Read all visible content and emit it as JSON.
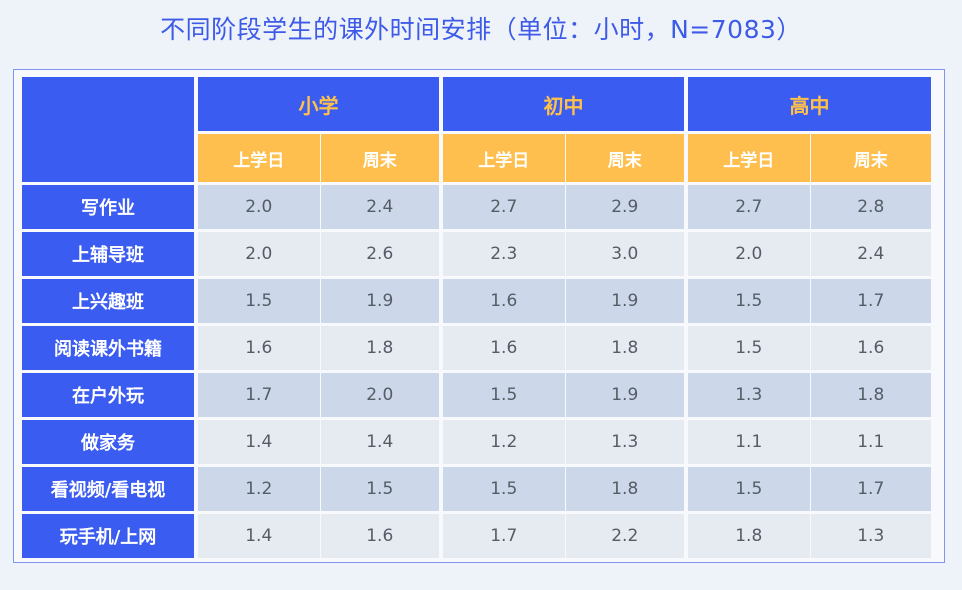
{
  "title": "不同阶段学生的课外时间安排（单位：小时，N=7083）",
  "colors": {
    "header_blue": "#3b5cf0",
    "header_orange": "#ffbf4f",
    "group_text": "#ffc14a",
    "title_blue": "#3d5ae8"
  },
  "chart_data": {
    "type": "table",
    "title": "不同阶段学生的课外时间安排（单位：小时，N=7083）",
    "groups": [
      "小学",
      "初中",
      "高中"
    ],
    "subcolumns": [
      "上学日",
      "周末"
    ],
    "rows": [
      {
        "label": "写作业",
        "values": [
          2.0,
          2.4,
          2.7,
          2.9,
          2.7,
          2.8
        ]
      },
      {
        "label": "上辅导班",
        "values": [
          2.0,
          2.6,
          2.3,
          3.0,
          2.0,
          2.4
        ]
      },
      {
        "label": "上兴趣班",
        "values": [
          1.5,
          1.9,
          1.6,
          1.9,
          1.5,
          1.7
        ]
      },
      {
        "label": "阅读课外书籍",
        "values": [
          1.6,
          1.8,
          1.6,
          1.8,
          1.5,
          1.6
        ]
      },
      {
        "label": "在户外玩",
        "values": [
          1.7,
          2.0,
          1.5,
          1.9,
          1.3,
          1.8
        ]
      },
      {
        "label": "做家务",
        "values": [
          1.4,
          1.4,
          1.2,
          1.3,
          1.1,
          1.1
        ]
      },
      {
        "label": "看视频/看电视",
        "values": [
          1.2,
          1.5,
          1.5,
          1.8,
          1.5,
          1.7
        ]
      },
      {
        "label": "玩手机/上网",
        "values": [
          1.4,
          1.6,
          1.7,
          2.2,
          1.8,
          1.3
        ]
      }
    ]
  }
}
